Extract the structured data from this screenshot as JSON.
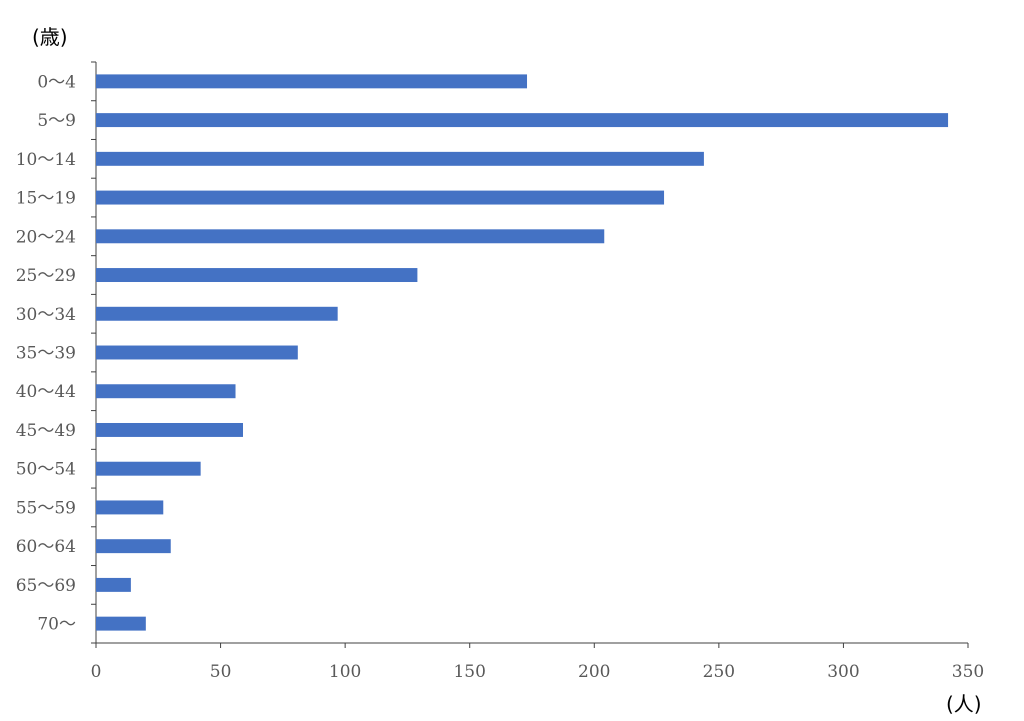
{
  "chart_data": {
    "type": "bar",
    "orientation": "horizontal",
    "categories": [
      "0〜4",
      "5〜9",
      "10〜14",
      "15〜19",
      "20〜24",
      "25〜29",
      "30〜34",
      "35〜39",
      "40〜44",
      "45〜49",
      "50〜54",
      "55〜59",
      "60〜64",
      "65〜69",
      "70〜"
    ],
    "values": [
      173,
      342,
      244,
      228,
      204,
      129,
      97,
      81,
      56,
      59,
      42,
      27,
      30,
      14,
      20
    ],
    "xlim": [
      0,
      350
    ],
    "x_ticks": [
      "0",
      "50",
      "100",
      "150",
      "200",
      "250",
      "300",
      "350"
    ],
    "x_unit_label": "(人)",
    "y_unit_label": "(歳)",
    "grid": false,
    "legend": "none",
    "bar_color": "#4472C4"
  }
}
